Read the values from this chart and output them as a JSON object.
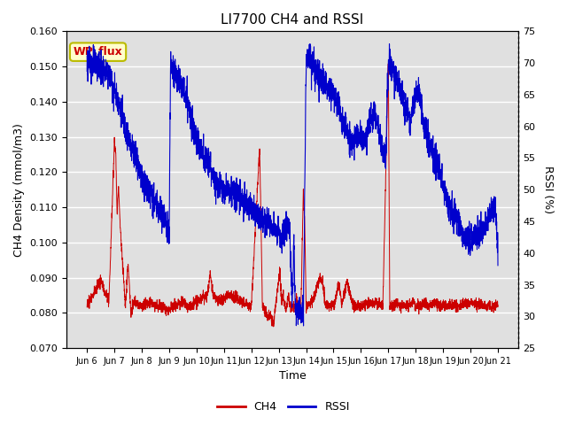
{
  "title": "LI7700 CH4 and RSSI",
  "xlabel": "Time",
  "ylabel_left": "CH4 Density (mmol/m3)",
  "ylabel_right": "RSSI (%)",
  "ylim_left": [
    0.07,
    0.16
  ],
  "ylim_right": [
    25,
    75
  ],
  "yticks_left": [
    0.07,
    0.08,
    0.09,
    0.1,
    0.11,
    0.12,
    0.13,
    0.14,
    0.15,
    0.16
  ],
  "yticks_right": [
    25,
    30,
    35,
    40,
    45,
    50,
    55,
    60,
    65,
    70,
    75
  ],
  "xtick_labels": [
    "Jun 6",
    "Jun 7",
    "Jun 8",
    "Jun 9",
    "Jun 10",
    "Jun 11",
    "Jun 12",
    "Jun 13",
    "Jun 14",
    "Jun 15",
    "Jun 16",
    "Jun 17",
    "Jun 18",
    "Jun 19",
    "Jun 20",
    "Jun 21"
  ],
  "ch4_color": "#cc0000",
  "rssi_color": "#0000cc",
  "annotation_text": "WP_flux",
  "annotation_bg": "#ffffcc",
  "annotation_border": "#bbbb00",
  "bg_color": "#e0e0e0",
  "legend_ch4": "CH4",
  "legend_rssi": "RSSI"
}
